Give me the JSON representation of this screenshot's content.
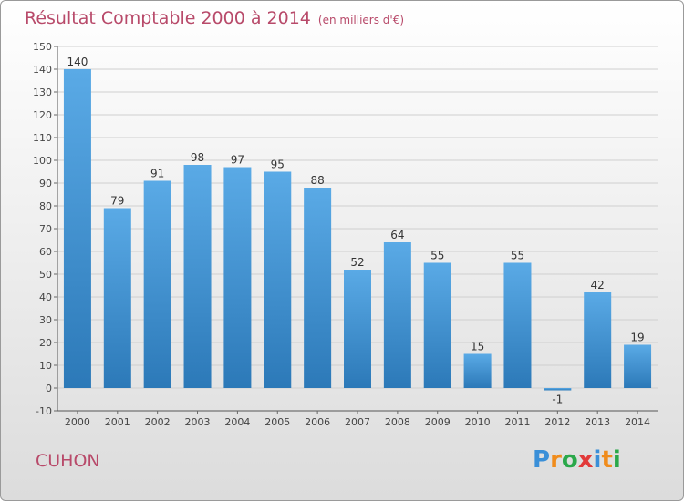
{
  "title": "Résultat Comptable 2000 à 2014",
  "subtitle": "(en milliers d'€)",
  "commune": "CUHON",
  "logo": {
    "letters": [
      "P",
      "r",
      "o",
      "x",
      "i",
      "t",
      "i"
    ],
    "colors": [
      "#3a8fd8",
      "#f08c1c",
      "#2aa84a",
      "#e23a3a",
      "#3a8fd8",
      "#f08c1c",
      "#2aa84a"
    ]
  },
  "colors": {
    "bar_top": "#5aaae6",
    "bar_bottom": "#2c79b8",
    "grid": "#cfcfcf",
    "title": "#b84a6a"
  },
  "chart_data": {
    "type": "bar",
    "categories": [
      "2000",
      "2001",
      "2002",
      "2003",
      "2004",
      "2005",
      "2006",
      "2007",
      "2008",
      "2009",
      "2010",
      "2011",
      "2012",
      "2013",
      "2014"
    ],
    "values": [
      140,
      79,
      91,
      98,
      97,
      95,
      88,
      52,
      64,
      55,
      15,
      55,
      -1,
      42,
      19
    ],
    "value_labels": [
      "140",
      "79",
      "91",
      "98",
      "97",
      "95",
      "88",
      "52",
      "64",
      "55",
      "15",
      "55",
      "-1",
      "42",
      "19"
    ],
    "ylim": [
      -10,
      150
    ],
    "yticks": [
      -10,
      0,
      10,
      20,
      30,
      40,
      50,
      60,
      70,
      80,
      90,
      100,
      110,
      120,
      130,
      140,
      150
    ],
    "grid": true
  }
}
